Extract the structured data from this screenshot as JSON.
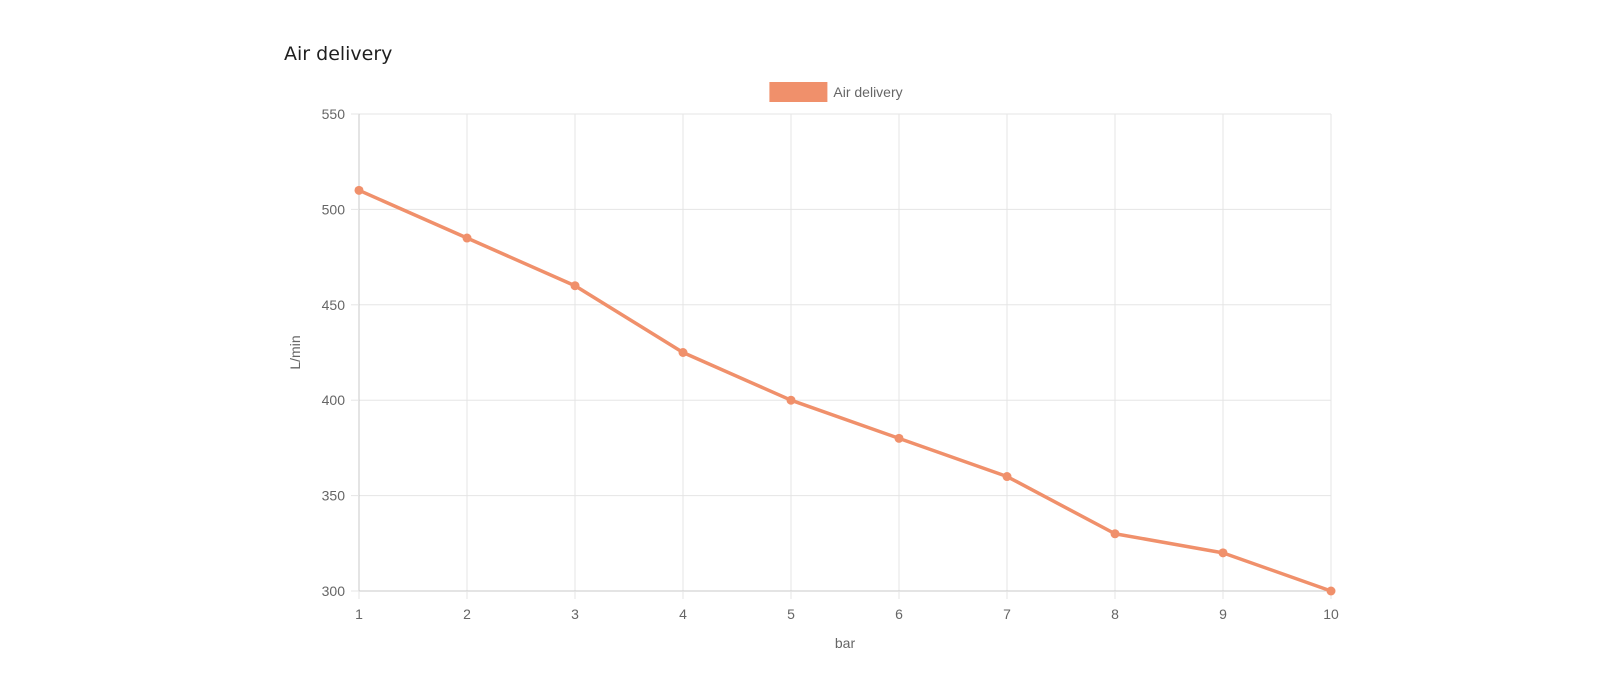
{
  "page": {
    "title": "Air delivery"
  },
  "chart_data": {
    "type": "line",
    "title": "",
    "xlabel": "bar",
    "ylabel": "L/min",
    "x": [
      1,
      2,
      3,
      4,
      5,
      6,
      7,
      8,
      9,
      10
    ],
    "series": [
      {
        "name": "Air delivery",
        "values": [
          510,
          485,
          460,
          425,
          400,
          380,
          360,
          330,
          320,
          300
        ],
        "color": "#f0906b"
      }
    ],
    "xlim": [
      1,
      10
    ],
    "ylim": [
      300,
      550
    ],
    "yticks": [
      300,
      350,
      400,
      450,
      500,
      550
    ],
    "xticks": [
      1,
      2,
      3,
      4,
      5,
      6,
      7,
      8,
      9,
      10
    ],
    "grid": true,
    "legend": "top-center",
    "grid_color": "#e5e5e5",
    "axis_color": "#c8c8c8"
  }
}
